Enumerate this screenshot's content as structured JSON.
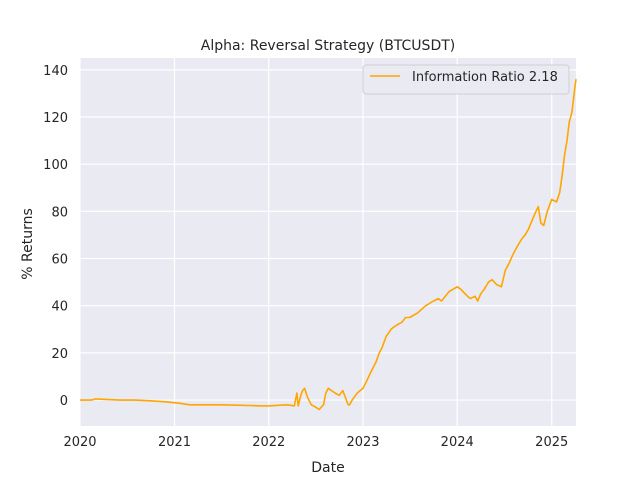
{
  "chart_data": {
    "type": "line",
    "title": "Alpha: Reversal Strategy (BTCUSDT)",
    "xlabel": "Date",
    "ylabel": "% Returns",
    "xlim": [
      "2020-01-01",
      "2025-04-05"
    ],
    "ylim": [
      -11,
      145
    ],
    "x_ticks": [
      "2020",
      "2021",
      "2022",
      "2023",
      "2024",
      "2025"
    ],
    "y_ticks": [
      0,
      20,
      40,
      60,
      80,
      100,
      120,
      140
    ],
    "grid": true,
    "legend_position": "top-right",
    "colors": {
      "line": "#ffa500",
      "plot_bg": "#eaeaf2",
      "grid": "#ffffff"
    },
    "series": [
      {
        "name": "Information Ratio 2.18",
        "x": [
          "2020-01-01",
          "2020-02-15",
          "2020-03-01",
          "2020-04-01",
          "2020-06-01",
          "2020-08-01",
          "2020-10-01",
          "2020-12-01",
          "2021-01-15",
          "2021-03-01",
          "2021-05-01",
          "2021-07-01",
          "2021-09-01",
          "2021-10-15",
          "2021-12-01",
          "2022-01-01",
          "2022-02-15",
          "2022-03-15",
          "2022-04-10",
          "2022-04-20",
          "2022-04-25",
          "2022-05-05",
          "2022-05-12",
          "2022-05-20",
          "2022-06-01",
          "2022-06-15",
          "2022-07-01",
          "2022-07-15",
          "2022-08-01",
          "2022-08-10",
          "2022-08-20",
          "2022-09-01",
          "2022-09-15",
          "2022-10-01",
          "2022-10-15",
          "2022-11-01",
          "2022-11-05",
          "2022-11-10",
          "2022-11-20",
          "2022-12-10",
          "2023-01-01",
          "2023-01-15",
          "2023-02-01",
          "2023-02-20",
          "2023-03-05",
          "2023-03-15",
          "2023-04-01",
          "2023-04-20",
          "2023-05-01",
          "2023-05-15",
          "2023-06-01",
          "2023-06-15",
          "2023-07-01",
          "2023-08-01",
          "2023-09-01",
          "2023-10-01",
          "2023-10-20",
          "2023-11-01",
          "2023-12-01",
          "2024-01-01",
          "2024-01-15",
          "2024-02-01",
          "2024-02-20",
          "2024-03-10",
          "2024-03-20",
          "2024-04-01",
          "2024-04-15",
          "2024-05-01",
          "2024-05-15",
          "2024-06-01",
          "2024-06-20",
          "2024-07-05",
          "2024-07-20",
          "2024-08-05",
          "2024-08-20",
          "2024-09-05",
          "2024-09-20",
          "2024-10-01",
          "2024-10-20",
          "2024-11-01",
          "2024-11-10",
          "2024-11-20",
          "2024-12-01",
          "2024-12-15",
          "2025-01-01",
          "2025-01-20",
          "2025-02-01",
          "2025-02-10",
          "2025-02-20",
          "2025-03-01",
          "2025-03-10",
          "2025-03-20",
          "2025-04-01",
          "2025-04-05"
        ],
        "y": [
          0,
          0,
          0.5,
          0.3,
          0,
          0,
          -0.3,
          -0.8,
          -1.3,
          -2,
          -2,
          -2,
          -2.2,
          -2.3,
          -2.5,
          -2.5,
          -2.2,
          -2,
          -2.5,
          3,
          -2.5,
          2,
          4,
          5,
          1,
          -2,
          -3,
          -4,
          -2,
          3,
          5,
          4,
          3,
          2,
          4,
          -1,
          -2,
          -2,
          0,
          3,
          5,
          8,
          12,
          16,
          20,
          22,
          27,
          30,
          31,
          32,
          33,
          35,
          35,
          37,
          40,
          42,
          43,
          42,
          46,
          48,
          47,
          45,
          43,
          44,
          42,
          45,
          47,
          50,
          51,
          49,
          48,
          55,
          58,
          62,
          65,
          68,
          70,
          72,
          77,
          80,
          82,
          75,
          74,
          80,
          85,
          84,
          88,
          95,
          104,
          110,
          118,
          122,
          133,
          136
        ]
      }
    ]
  }
}
